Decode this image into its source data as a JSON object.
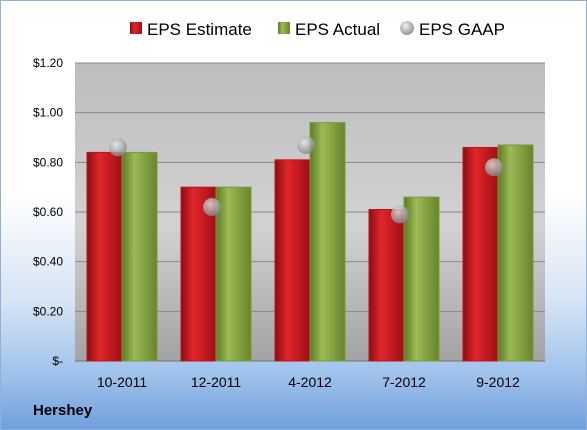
{
  "company": "Hershey",
  "colors": {
    "estimate": "#c0141a",
    "actual": "#7c9a3a",
    "gaap": "#a9a9a9"
  },
  "chart_data": {
    "type": "bar",
    "categories": [
      "10-2011",
      "12-2011",
      "4-2012",
      "7-2012",
      "9-2012"
    ],
    "series": [
      {
        "name": "EPS Estimate",
        "values": [
          0.84,
          0.7,
          0.81,
          0.61,
          0.86
        ]
      },
      {
        "name": "EPS Actual",
        "values": [
          0.84,
          0.7,
          0.96,
          0.66,
          0.87
        ]
      },
      {
        "name": "EPS GAAP",
        "values": [
          0.86,
          0.62,
          0.87,
          0.59,
          0.78
        ],
        "style": "marker"
      }
    ],
    "y_ticks": [
      "$-",
      "$0.20",
      "$0.40",
      "$0.60",
      "$0.80",
      "$1.00",
      "$1.20"
    ],
    "ylim": [
      0,
      1.2
    ],
    "grid": true,
    "legend": "top"
  }
}
